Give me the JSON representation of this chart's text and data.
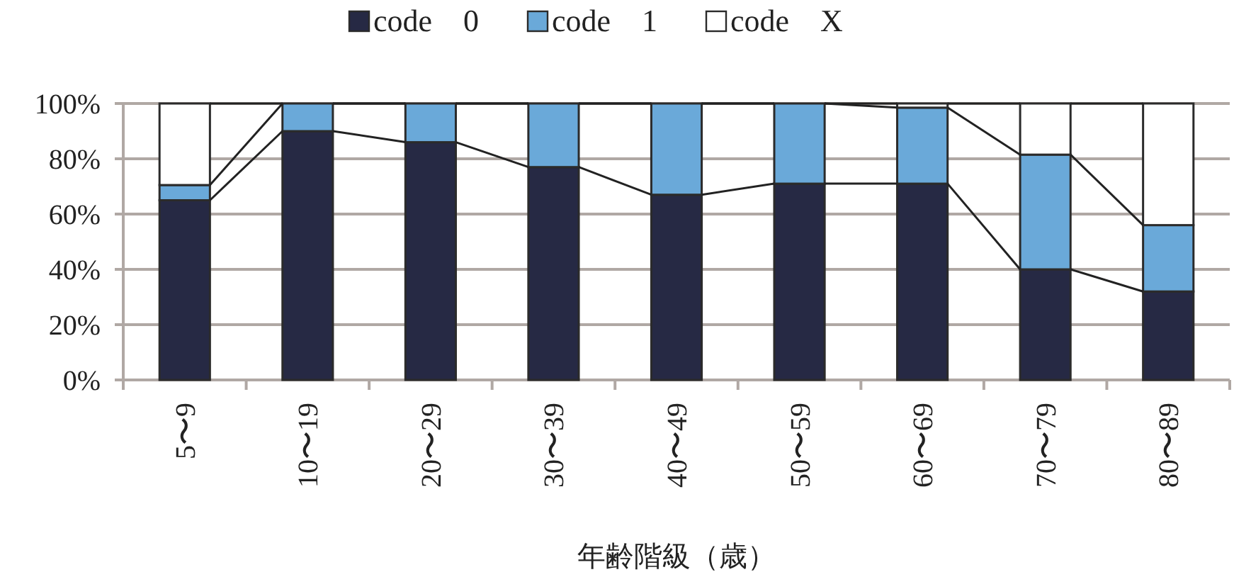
{
  "chart_data": {
    "type": "bar",
    "stacked": true,
    "xlabel": "年齢階級（歳）",
    "categories": [
      "5〜9",
      "10〜19",
      "20〜29",
      "30〜39",
      "40〜49",
      "50〜59",
      "60〜69",
      "70〜79",
      "80〜89"
    ],
    "series": [
      {
        "name": "code　0",
        "color": "#262944",
        "values": [
          65,
          90,
          86,
          77,
          67,
          71,
          71,
          40,
          32
        ]
      },
      {
        "name": "code　1",
        "color": "#6aa9d9",
        "values": [
          5.5,
          10,
          14,
          23,
          33,
          29,
          27.5,
          41.5,
          24
        ]
      },
      {
        "name": "code　X",
        "color": "#ffffff",
        "values": [
          29.5,
          0,
          0,
          0,
          0,
          0,
          1.5,
          18.5,
          44
        ]
      }
    ],
    "ylim": [
      0,
      100
    ],
    "yticks": [
      {
        "value": 0,
        "label": "0%"
      },
      {
        "value": 20,
        "label": "20%"
      },
      {
        "value": 40,
        "label": "40%"
      },
      {
        "value": 60,
        "label": "60%"
      },
      {
        "value": 80,
        "label": "80%"
      },
      {
        "value": 100,
        "label": "100%"
      }
    ],
    "grid": "y",
    "legend": "top"
  }
}
